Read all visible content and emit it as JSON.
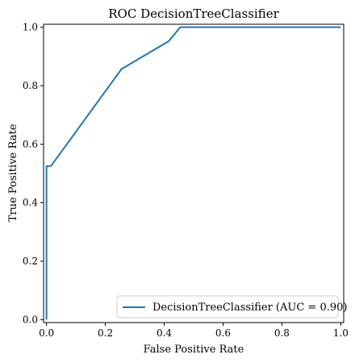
{
  "chart_data": {
    "type": "line",
    "title": "ROC DecisionTreeClassifier",
    "xlabel": "False Positive Rate",
    "ylabel": "True Positive Rate",
    "xlim": [
      -0.01,
      1.01
    ],
    "ylim": [
      -0.01,
      1.01
    ],
    "xticks": [
      "0.0",
      "0.2",
      "0.4",
      "0.6",
      "0.8",
      "1.0"
    ],
    "yticks": [
      "0.0",
      "0.2",
      "0.4",
      "0.6",
      "0.8",
      "1.0"
    ],
    "grid": false,
    "legend_position": "lower-right",
    "series": [
      {
        "name": "DecisionTreeClassifier (AUC = 0.90)",
        "color": "#1f77b4",
        "x": [
          0.0,
          0.0,
          0.005,
          0.015,
          0.255,
          0.415,
          0.455,
          1.0
        ],
        "y": [
          0.0,
          0.525,
          0.525,
          0.525,
          0.857,
          0.952,
          1.0,
          1.0
        ]
      }
    ]
  }
}
